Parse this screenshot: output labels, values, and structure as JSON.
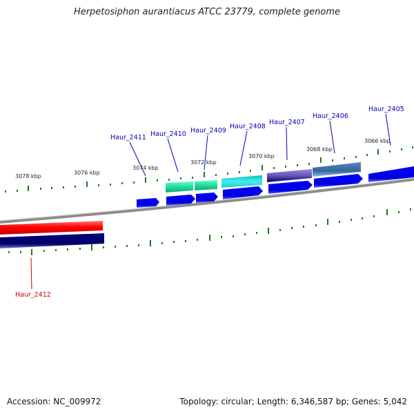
{
  "title": "Herpetosiphon aurantiacus ATCC 23779, complete genome",
  "footer": {
    "accession": "Accession: NC_009972",
    "topology": "Topology: circular; Length: 6,346,587 bp; Genes: 5,042"
  },
  "kbp_labels": [
    "3078 kbp",
    "3076 kbp",
    "3074 kbp",
    "3072 kbp",
    "3070 kbp",
    "3068 kbp",
    "3066 kbp"
  ],
  "gene_labels": [
    "Haur_2412",
    "Haur_2411",
    "Haur_2410",
    "Haur_2409",
    "Haur_2408",
    "Haur_2407",
    "Haur_2406",
    "Haur_2405"
  ],
  "colors": {
    "backbone": "#8c8c8c",
    "tick": "#1a7a1a",
    "arrow": "#0000ee",
    "label_blue": "#0000b3",
    "label_red": "#cc0000",
    "red_bar": "#ff0000",
    "navy_bar": "#000080",
    "green_bar": "#22dd99",
    "cyan_bar": "#22cccc",
    "purple_bar": "#6655bb",
    "steel_bar": "#4477aa"
  }
}
